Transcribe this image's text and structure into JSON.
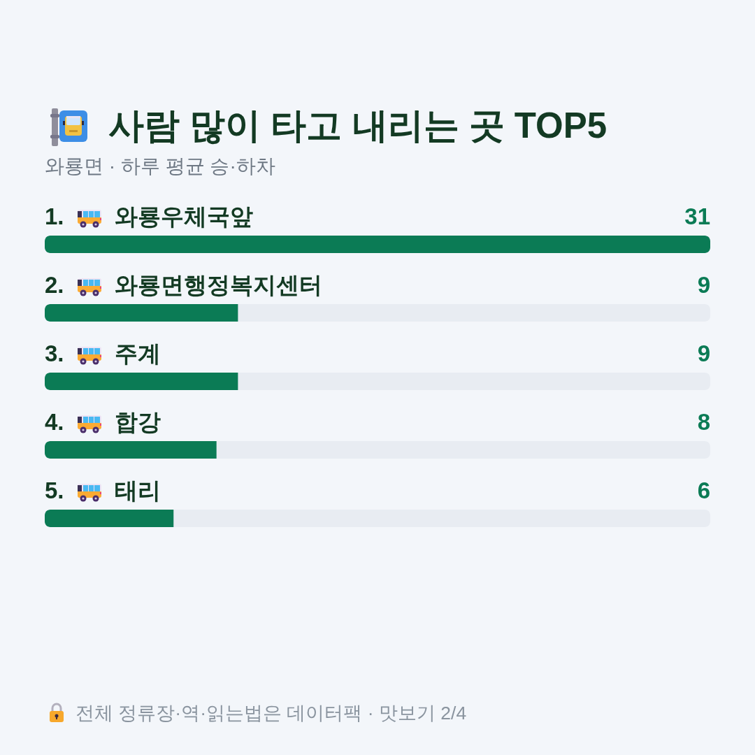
{
  "chart_data": {
    "type": "bar",
    "orientation": "horizontal",
    "title": "사람 많이 타고 내리는 곳 TOP5",
    "subtitle": "와룡면 · 하루 평균 승·하차",
    "categories": [
      "1. 와룡우체국앞",
      "2. 와룡면행정복지센터",
      "3. 주계",
      "4. 합강",
      "5. 태리"
    ],
    "values": [
      31,
      9,
      9,
      8,
      6
    ],
    "color": "#0b7b55",
    "data_labels": true,
    "annotations": [
      "전체 정류장·역·읽는법은 데이터팩 · 맛보기 2/4"
    ]
  }
}
